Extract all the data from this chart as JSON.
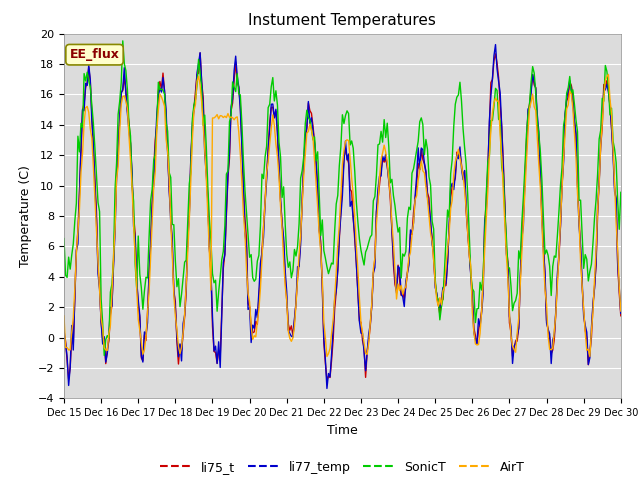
{
  "title": "Instument Temperatures",
  "xlabel": "Time",
  "ylabel": "Temperature (C)",
  "ylim": [
    -4,
    20
  ],
  "xlim": [
    0,
    360
  ],
  "x_tick_labels": [
    "Dec 15",
    "Dec 16",
    "Dec 17",
    "Dec 18",
    "Dec 19",
    "Dec 20",
    "Dec 21",
    "Dec 22",
    "Dec 23",
    "Dec 24",
    "Dec 25",
    "Dec 26",
    "Dec 27",
    "Dec 28",
    "Dec 29",
    "Dec 30"
  ],
  "x_tick_positions": [
    0,
    24,
    48,
    72,
    96,
    120,
    144,
    168,
    192,
    216,
    240,
    264,
    288,
    312,
    336,
    360
  ],
  "annotation_text": "EE_flux",
  "colors": {
    "li75_t": "#cc0000",
    "li77_temp": "#0000cc",
    "SonicT": "#00cc00",
    "AirT": "#ffaa00"
  },
  "background_color": "#dcdcdc",
  "fig_background": "#ffffff",
  "legend_labels": [
    "li75_t",
    "li77_temp",
    "SonicT",
    "AirT"
  ]
}
